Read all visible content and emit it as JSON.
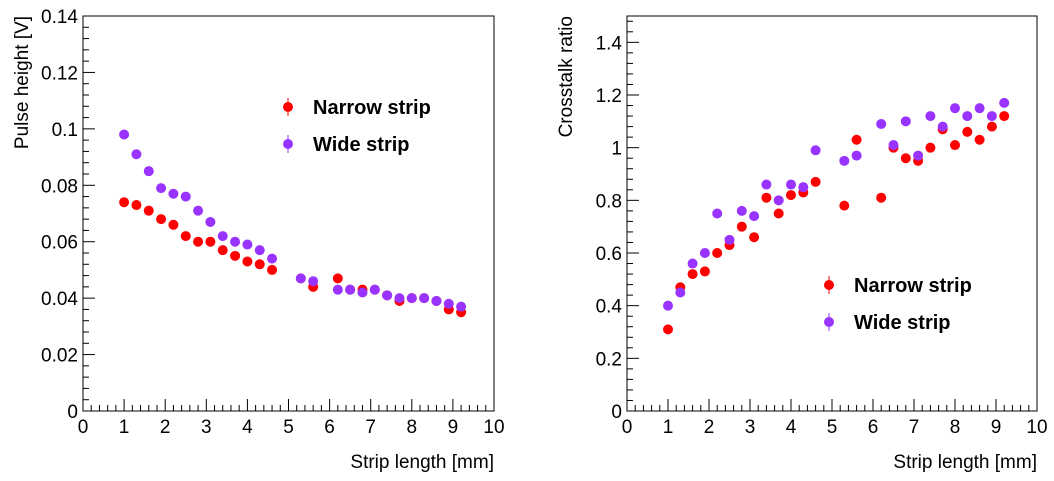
{
  "colors": {
    "narrow": "#ff0000",
    "wide": "#9933ff",
    "axis": "#000000",
    "background": "#ffffff"
  },
  "chart_data": [
    {
      "type": "scatter",
      "title": "",
      "xlabel": "Strip length [mm]",
      "ylabel": "Pulse height [V]",
      "xlim": [
        0,
        10
      ],
      "ylim": [
        0,
        0.14
      ],
      "xticks": [
        0,
        1,
        2,
        3,
        4,
        5,
        6,
        7,
        8,
        9,
        10
      ],
      "yticks": [
        0,
        0.02,
        0.04,
        0.06,
        0.08,
        0.1,
        0.12,
        0.14
      ],
      "grid": false,
      "legend_position": "top-right",
      "series": [
        {
          "name": "Narrow strip",
          "color": "#ff0000",
          "x": [
            1.0,
            1.3,
            1.6,
            1.9,
            2.2,
            2.5,
            2.8,
            3.1,
            3.4,
            3.7,
            4.0,
            4.3,
            4.6,
            5.3,
            5.6,
            6.2,
            6.5,
            6.8,
            7.1,
            7.4,
            7.7,
            8.0,
            8.3,
            8.6,
            8.9,
            9.2
          ],
          "y": [
            0.074,
            0.073,
            0.071,
            0.068,
            0.066,
            0.062,
            0.06,
            0.06,
            0.057,
            0.055,
            0.053,
            0.052,
            0.05,
            0.047,
            0.044,
            0.047,
            0.043,
            0.043,
            0.043,
            0.041,
            0.039,
            0.04,
            0.04,
            0.039,
            0.036,
            0.035
          ]
        },
        {
          "name": "Wide strip",
          "color": "#9933ff",
          "x": [
            1.0,
            1.3,
            1.6,
            1.9,
            2.2,
            2.5,
            2.8,
            3.1,
            3.4,
            3.7,
            4.0,
            4.3,
            4.6,
            5.3,
            5.6,
            6.2,
            6.5,
            6.8,
            7.1,
            7.4,
            7.7,
            8.0,
            8.3,
            8.6,
            8.9,
            9.2
          ],
          "y": [
            0.098,
            0.091,
            0.085,
            0.079,
            0.077,
            0.076,
            0.071,
            0.067,
            0.062,
            0.06,
            0.059,
            0.057,
            0.054,
            0.047,
            0.046,
            0.043,
            0.043,
            0.042,
            0.043,
            0.041,
            0.04,
            0.04,
            0.04,
            0.039,
            0.038,
            0.037
          ]
        }
      ]
    },
    {
      "type": "scatter",
      "title": "",
      "xlabel": "Strip length [mm]",
      "ylabel": "Crosstalk ratio",
      "xlim": [
        0,
        10
      ],
      "ylim": [
        0,
        1.5
      ],
      "xticks": [
        0,
        1,
        2,
        3,
        4,
        5,
        6,
        7,
        8,
        9,
        10
      ],
      "yticks": [
        0,
        0.2,
        0.4,
        0.6,
        0.8,
        1,
        1.2,
        1.4
      ],
      "grid": false,
      "legend_position": "bottom-right",
      "series": [
        {
          "name": "Narrow strip",
          "color": "#ff0000",
          "x": [
            1.0,
            1.3,
            1.6,
            1.9,
            2.2,
            2.5,
            2.8,
            3.1,
            3.4,
            3.7,
            4.0,
            4.3,
            4.6,
            5.3,
            5.6,
            6.2,
            6.5,
            6.8,
            7.1,
            7.4,
            7.7,
            8.0,
            8.3,
            8.6,
            8.9,
            9.2
          ],
          "y": [
            0.31,
            0.47,
            0.52,
            0.53,
            0.6,
            0.63,
            0.7,
            0.66,
            0.81,
            0.75,
            0.82,
            0.83,
            0.87,
            0.78,
            1.03,
            0.81,
            1.0,
            0.96,
            0.95,
            1.0,
            1.07,
            1.01,
            1.06,
            1.03,
            1.08,
            1.12
          ]
        },
        {
          "name": "Wide strip",
          "color": "#9933ff",
          "x": [
            1.0,
            1.3,
            1.6,
            1.9,
            2.2,
            2.5,
            2.8,
            3.1,
            3.4,
            3.7,
            4.0,
            4.3,
            4.6,
            5.3,
            5.6,
            6.2,
            6.5,
            6.8,
            7.1,
            7.4,
            7.7,
            8.0,
            8.3,
            8.6,
            8.9,
            9.2
          ],
          "y": [
            0.4,
            0.45,
            0.56,
            0.6,
            0.75,
            0.65,
            0.76,
            0.74,
            0.86,
            0.8,
            0.86,
            0.85,
            0.99,
            0.95,
            0.97,
            1.09,
            1.01,
            1.1,
            0.97,
            1.12,
            1.08,
            1.15,
            1.12,
            1.15,
            1.12,
            1.17
          ]
        }
      ]
    }
  ]
}
